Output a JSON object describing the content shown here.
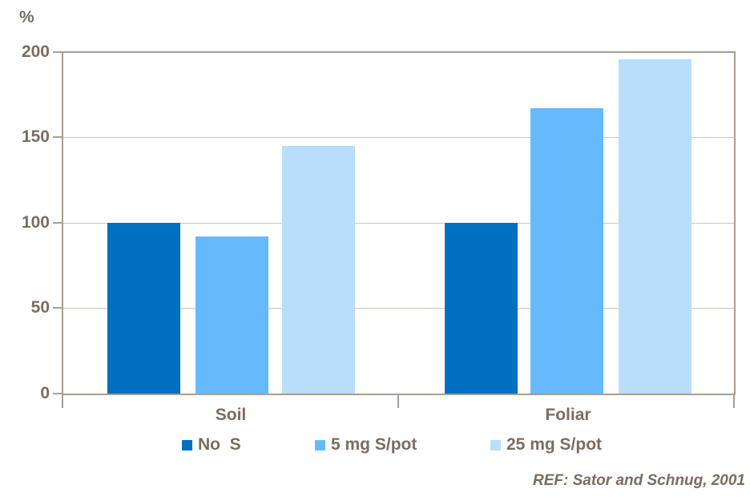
{
  "colors": {
    "text": "#7C6C5E",
    "axis": "#A89E92",
    "gridline": "#CCC5BA",
    "background": "#FFFFFF",
    "series": [
      "#0070C0",
      "#66B9FC",
      "#B8DEFB"
    ]
  },
  "chart_data": {
    "type": "bar",
    "title": "",
    "ylabel": "%",
    "xlabel": "",
    "ylim": [
      0,
      200
    ],
    "yticks": [
      0,
      50,
      100,
      150,
      200
    ],
    "grid": true,
    "legend_position": "bottom",
    "categories": [
      "Soil",
      "Foliar"
    ],
    "series": [
      {
        "name": "No  S",
        "color": "#0070C0",
        "values": [
          100,
          100
        ]
      },
      {
        "name": "5 mg S/pot",
        "color": "#66B9FC",
        "values": [
          92,
          167
        ]
      },
      {
        "name": "25 mg S/pot",
        "color": "#B8DEFB",
        "values": [
          145,
          196
        ]
      }
    ],
    "footnote": "REF: Sator and Schnug, 2001"
  }
}
